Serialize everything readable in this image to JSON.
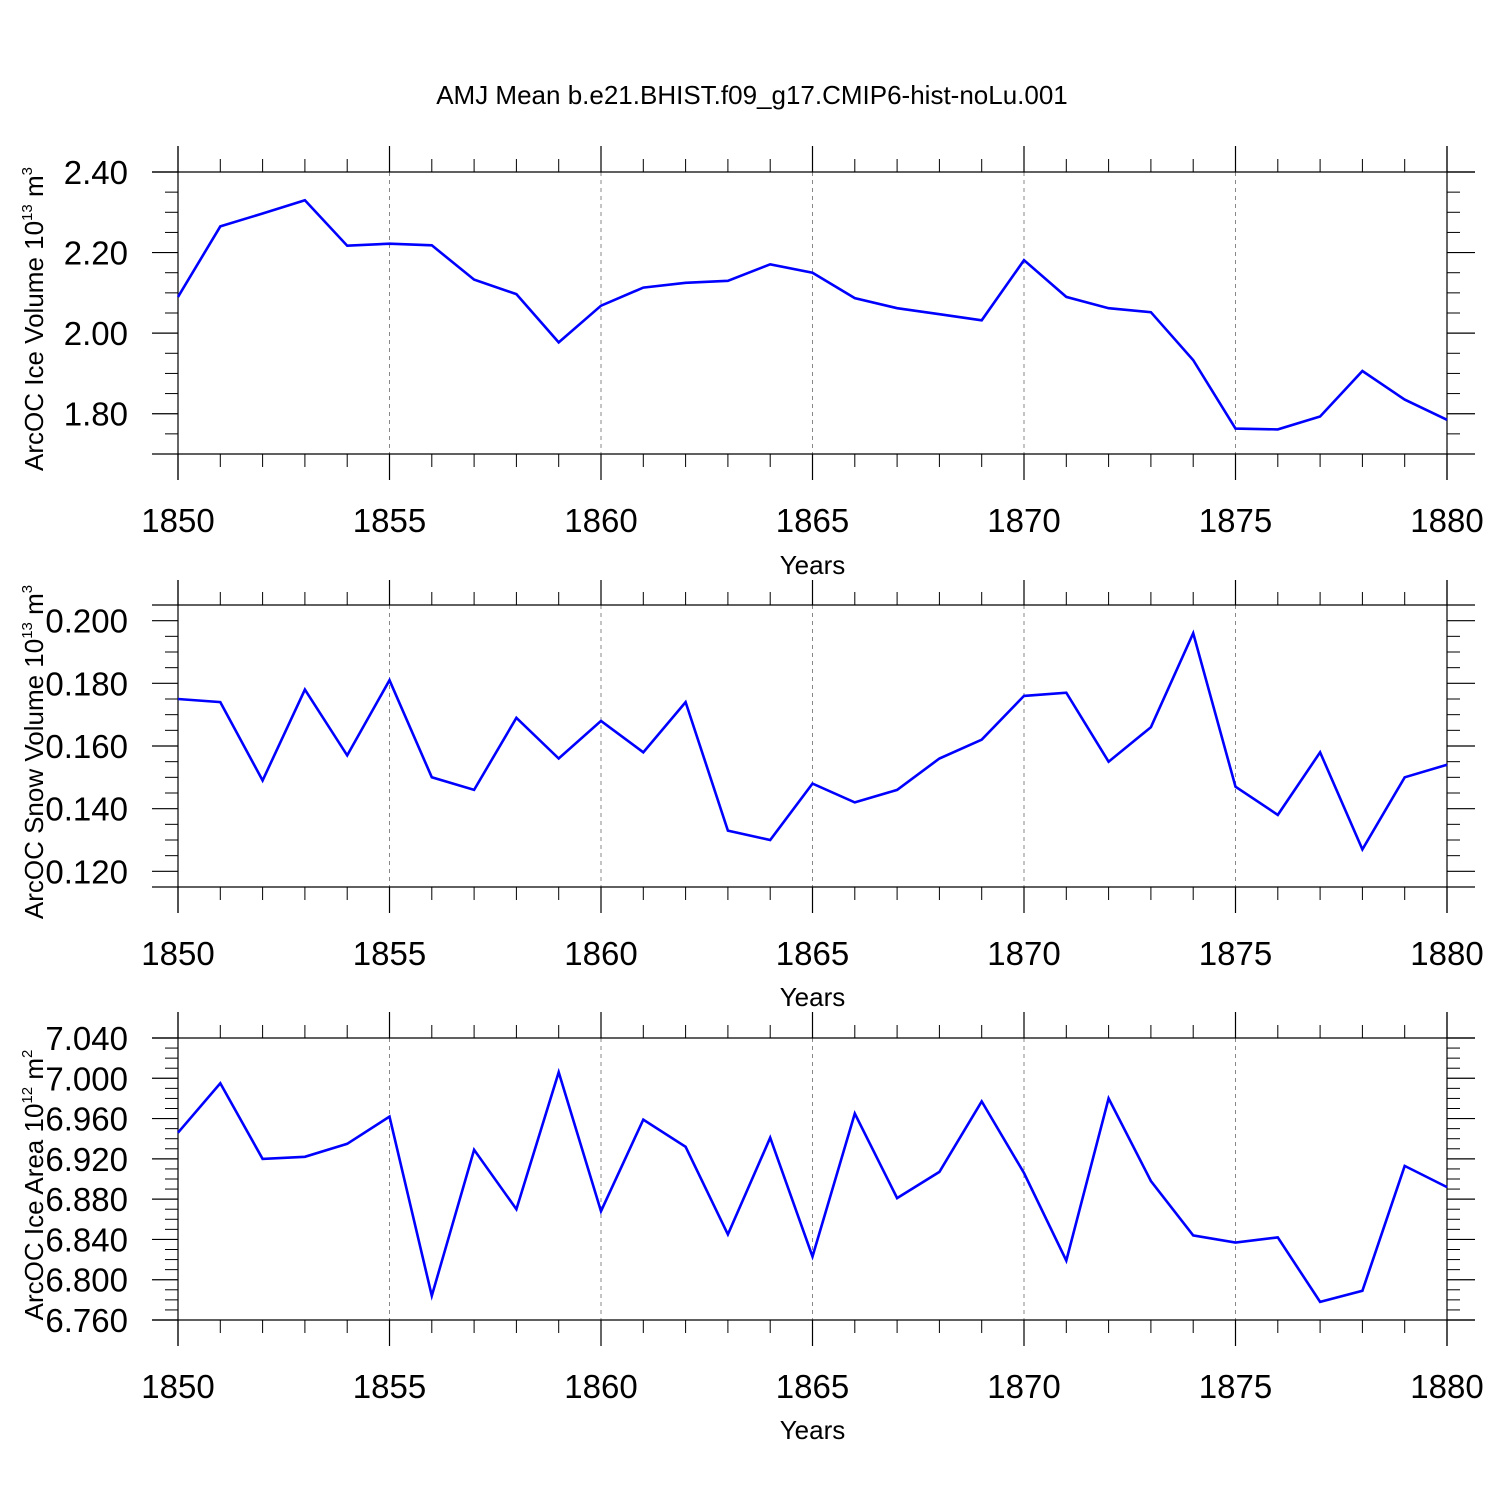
{
  "title": "AMJ Mean b.e21.BHIST.f09_g17.CMIP6-hist-noLu.001",
  "line_color": "#0000ff",
  "chart_data": [
    {
      "type": "line",
      "xlabel": "Years",
      "ylabel": {
        "main": "ArcOC Ice Volume 10",
        "exp": "13",
        "unit": " m",
        "unit_exp": "3"
      },
      "xlim": [
        1850,
        1880
      ],
      "ylim": [
        1.7,
        2.4
      ],
      "x_ticks": [
        1850,
        1855,
        1860,
        1865,
        1870,
        1875,
        1880
      ],
      "x_tick_labels": [
        "1850",
        "1855",
        "1860",
        "1865",
        "1870",
        "1875",
        "1880"
      ],
      "y_ticks": [
        1.8,
        2.0,
        2.2,
        2.4
      ],
      "y_tick_labels": [
        "1.80",
        "2.00",
        "2.20",
        "2.40"
      ],
      "y_minor_step": 0.05,
      "grid": "vertical-dashed",
      "x": [
        1850,
        1851,
        1852,
        1853,
        1854,
        1855,
        1856,
        1857,
        1858,
        1859,
        1860,
        1861,
        1862,
        1863,
        1864,
        1865,
        1866,
        1867,
        1868,
        1869,
        1870,
        1871,
        1872,
        1873,
        1874,
        1875,
        1876,
        1877,
        1878,
        1879,
        1880
      ],
      "series": [
        {
          "values": [
            2.09,
            2.265,
            2.297,
            2.33,
            2.217,
            2.222,
            2.218,
            2.133,
            2.097,
            1.977,
            2.068,
            2.113,
            2.125,
            2.13,
            2.171,
            2.15,
            2.087,
            2.062,
            2.047,
            2.032,
            2.181,
            2.09,
            2.062,
            2.052,
            1.933,
            1.763,
            1.761,
            1.793,
            1.906,
            1.835,
            1.785
          ]
        }
      ]
    },
    {
      "type": "line",
      "xlabel": "Years",
      "ylabel": {
        "main": "ArcOC Snow Volume 10",
        "exp": "13",
        "unit": " m",
        "unit_exp": "3"
      },
      "xlim": [
        1850,
        1880
      ],
      "ylim": [
        0.115,
        0.205
      ],
      "x_ticks": [
        1850,
        1855,
        1860,
        1865,
        1870,
        1875,
        1880
      ],
      "x_tick_labels": [
        "1850",
        "1855",
        "1860",
        "1865",
        "1870",
        "1875",
        "1880"
      ],
      "y_ticks": [
        0.12,
        0.14,
        0.16,
        0.18,
        0.2
      ],
      "y_tick_labels": [
        "0.120",
        "0.140",
        "0.160",
        "0.180",
        "0.200"
      ],
      "y_minor_step": 0.005,
      "grid": "vertical-dashed",
      "x": [
        1850,
        1851,
        1852,
        1853,
        1854,
        1855,
        1856,
        1857,
        1858,
        1859,
        1860,
        1861,
        1862,
        1863,
        1864,
        1865,
        1866,
        1867,
        1868,
        1869,
        1870,
        1871,
        1872,
        1873,
        1874,
        1875,
        1876,
        1877,
        1878,
        1879,
        1880
      ],
      "series": [
        {
          "values": [
            0.175,
            0.174,
            0.149,
            0.178,
            0.157,
            0.181,
            0.15,
            0.146,
            0.169,
            0.156,
            0.168,
            0.158,
            0.174,
            0.133,
            0.13,
            0.148,
            0.142,
            0.146,
            0.156,
            0.162,
            0.176,
            0.177,
            0.155,
            0.166,
            0.196,
            0.147,
            0.138,
            0.158,
            0.127,
            0.15,
            0.154
          ]
        }
      ]
    },
    {
      "type": "line",
      "xlabel": "Years",
      "ylabel": {
        "main": "ArcOC Ice Area 10",
        "exp": "12",
        "unit": " m",
        "unit_exp": "2"
      },
      "xlim": [
        1850,
        1880
      ],
      "ylim": [
        6.76,
        7.04
      ],
      "x_ticks": [
        1850,
        1855,
        1860,
        1865,
        1870,
        1875,
        1880
      ],
      "x_tick_labels": [
        "1850",
        "1855",
        "1860",
        "1865",
        "1870",
        "1875",
        "1880"
      ],
      "y_ticks": [
        6.76,
        6.8,
        6.84,
        6.88,
        6.92,
        6.96,
        7.0,
        7.04
      ],
      "y_tick_labels": [
        "6.760",
        "6.800",
        "6.840",
        "6.880",
        "6.920",
        "6.960",
        "7.000",
        "7.040"
      ],
      "y_minor_step": 0.01,
      "grid": "vertical-dashed",
      "x": [
        1850,
        1851,
        1852,
        1853,
        1854,
        1855,
        1856,
        1857,
        1858,
        1859,
        1860,
        1861,
        1862,
        1863,
        1864,
        1865,
        1866,
        1867,
        1868,
        1869,
        1870,
        1871,
        1872,
        1873,
        1874,
        1875,
        1876,
        1877,
        1878,
        1879,
        1880
      ],
      "series": [
        {
          "values": [
            6.946,
            6.995,
            6.92,
            6.922,
            6.935,
            6.962,
            6.784,
            6.929,
            6.87,
            7.006,
            6.868,
            6.959,
            6.932,
            6.845,
            6.941,
            6.823,
            6.965,
            6.881,
            6.907,
            6.977,
            6.906,
            6.819,
            6.98,
            6.898,
            6.844,
            6.837,
            6.842,
            6.778,
            6.789,
            6.913,
            6.892
          ]
        }
      ]
    }
  ]
}
